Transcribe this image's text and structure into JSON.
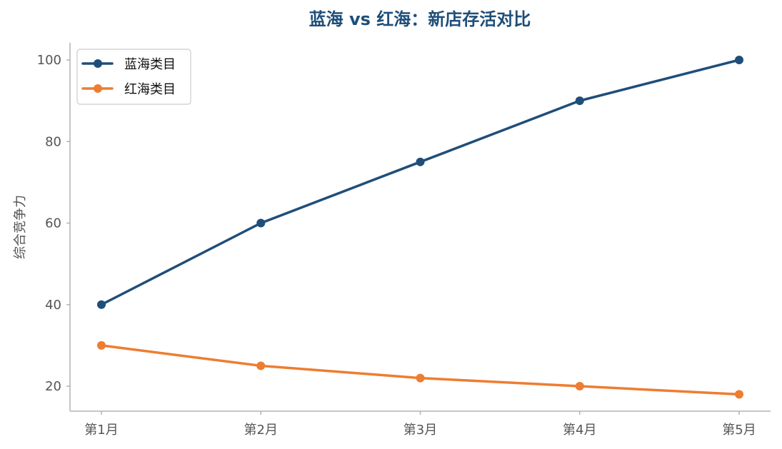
{
  "chart_data": {
    "type": "line",
    "title": "蓝海 vs 红海：新店存活对比",
    "xlabel": "",
    "ylabel": "综合竞争力",
    "categories": [
      "第1月",
      "第2月",
      "第3月",
      "第4月",
      "第5月"
    ],
    "yticks": [
      20,
      40,
      60,
      80,
      100
    ],
    "ylim": [
      14,
      104
    ],
    "legend_position": "top-left",
    "grid": false,
    "series": [
      {
        "name": "蓝海类目",
        "values": [
          40,
          60,
          75,
          90,
          100
        ],
        "color": "#1f4e79"
      },
      {
        "name": "红海类目",
        "values": [
          30,
          25,
          22,
          20,
          18
        ],
        "color": "#ed7d31"
      }
    ]
  },
  "colors": {
    "title": "#1f4e79",
    "axis": "#b3b3b3",
    "tick_text": "#555555"
  }
}
